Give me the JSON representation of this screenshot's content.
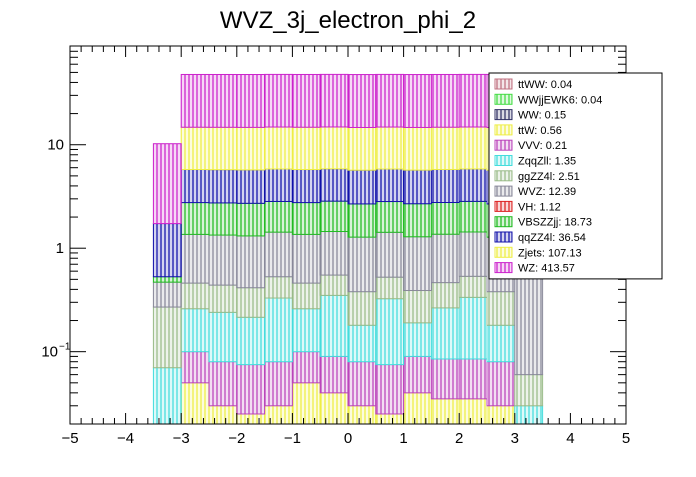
{
  "chart_data": {
    "type": "bar",
    "stacked": true,
    "title": "WVZ_3j_electron_phi_2",
    "xlabel": "",
    "ylabel": "",
    "x_edges": [
      -3.5,
      -3.0,
      -2.5,
      -2.0,
      -1.5,
      -1.0,
      -0.5,
      0.0,
      0.5,
      1.0,
      1.5,
      2.0,
      2.5,
      3.0,
      3.5
    ],
    "xlim": [
      -5,
      5
    ],
    "ylim": [
      0.02,
      90
    ],
    "y_scale": "log",
    "x_tick_labels": [
      "−5",
      "−4",
      "−3",
      "−2",
      "−1",
      "0",
      "1",
      "2",
      "3",
      "4",
      "5"
    ],
    "y_tick_labels": [
      {
        "base": "10",
        "exp": "−1"
      },
      {
        "base": "1",
        "exp": ""
      },
      {
        "base": "10",
        "exp": ""
      }
    ],
    "legend_position": "top-right",
    "legend": [
      {
        "label": "ttWW: 0.04",
        "color": "#c07080"
      },
      {
        "label": "WWjjEWK6: 0.04",
        "color": "#44dd44"
      },
      {
        "label": "WW: 0.15",
        "color": "#333366"
      },
      {
        "label": "ttW: 0.56",
        "color": "#eeee44"
      },
      {
        "label": "VVV: 0.21",
        "color": "#bb44bb"
      },
      {
        "label": "ZqqZll: 1.35",
        "color": "#44dddd"
      },
      {
        "label": "ggZZ4l: 2.51",
        "color": "#99bb88"
      },
      {
        "label": "WVZ: 12.39",
        "color": "#888899"
      },
      {
        "label": "VH: 1.12",
        "color": "#dd2222"
      },
      {
        "label": "VBSZZjj: 18.73",
        "color": "#22bb22"
      },
      {
        "label": "qqZZ4l: 36.54",
        "color": "#1111aa"
      },
      {
        "label": "Zjets: 107.13",
        "color": "#eeee44"
      },
      {
        "label": "WZ: 413.57",
        "color": "#cc22cc"
      }
    ],
    "series": [
      {
        "name": "ttW: 0.56",
        "color": "#eeee44",
        "values": [
          0,
          0.05,
          0.03,
          0.025,
          0.03,
          0.05,
          0.04,
          0.03,
          0.025,
          0.04,
          0.035,
          0.035,
          0.03,
          0
        ]
      },
      {
        "name": "VVV: 0.21",
        "color": "#bb44bb",
        "values": [
          0,
          0.05,
          0.05,
          0.05,
          0.05,
          0.05,
          0.05,
          0.05,
          0.05,
          0.05,
          0.05,
          0.05,
          0.05,
          0
        ]
      },
      {
        "name": "ZqqZll: 1.35",
        "color": "#44dddd",
        "values": [
          0.07,
          0.16,
          0.16,
          0.14,
          0.25,
          0.16,
          0.26,
          0.1,
          0.25,
          0.1,
          0.18,
          0.25,
          0.1,
          0.03
        ]
      },
      {
        "name": "ggZZ4l: 2.51",
        "color": "#99bb88",
        "values": [
          0.2,
          0.2,
          0.2,
          0.2,
          0.2,
          0.2,
          0.2,
          0.2,
          0.2,
          0.2,
          0.2,
          0.2,
          0.2,
          0.03
        ]
      },
      {
        "name": "WVZ: 12.39",
        "color": "#888899",
        "values": [
          0.2,
          0.9,
          0.9,
          0.9,
          0.9,
          0.9,
          0.9,
          0.9,
          0.9,
          0.9,
          0.9,
          0.9,
          0.9,
          0.6
        ]
      },
      {
        "name": "VBSZZjj: 18.73",
        "color": "#22bb22",
        "values": [
          0.06,
          1.4,
          1.4,
          1.4,
          1.4,
          1.4,
          1.4,
          1.4,
          1.4,
          1.4,
          1.4,
          1.4,
          1.4,
          0.0
        ]
      },
      {
        "name": "qqZZ4l: 36.54",
        "color": "#1111aa",
        "values": [
          1.2,
          3.0,
          3.0,
          3.0,
          3.0,
          3.0,
          3.0,
          3.0,
          3.0,
          3.0,
          3.0,
          3.0,
          3.0,
          0.1
        ]
      },
      {
        "name": "Zjets: 107.13",
        "color": "#eeee44",
        "values": [
          0,
          9.0,
          9.0,
          9.0,
          9.0,
          9.0,
          9.0,
          9.0,
          9.0,
          9.0,
          9.0,
          9.0,
          9.0,
          0
        ]
      },
      {
        "name": "WZ: 413.57",
        "color": "#cc22cc",
        "values": [
          8.5,
          33.0,
          33.0,
          33.0,
          33.0,
          33.0,
          33.0,
          33.0,
          33.0,
          33.0,
          33.0,
          33.0,
          33.0,
          0
        ]
      }
    ]
  }
}
